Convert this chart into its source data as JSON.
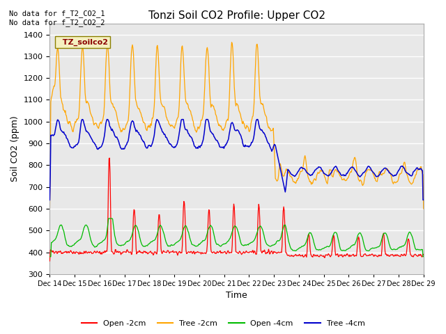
{
  "title": "Tonzi Soil CO2 Profile: Upper CO2",
  "ylabel": "Soil CO2 (ppm)",
  "xlabel": "Time",
  "top_left_text": "No data for f_T2_CO2_1\nNo data for f_T2_CO2_2",
  "legend_label": "TZ_soilco2",
  "legend_entries": [
    "Open -2cm",
    "Tree -2cm",
    "Open -4cm",
    "Tree -4cm"
  ],
  "legend_colors": [
    "#ff0000",
    "#ffa500",
    "#00bb00",
    "#0000cc"
  ],
  "ylim": [
    300,
    1450
  ],
  "plot_bg_color": "#e8e8e8",
  "fig_bg_color": "#ffffff",
  "grid_color": "#ffffff",
  "x_tick_labels": [
    "Dec 14",
    "Dec 15",
    "Dec 16",
    "Dec 17",
    "Dec 18",
    "Dec 19",
    "Dec 20",
    "Dec 21",
    "Dec 22",
    "Dec 23",
    "Dec 24",
    "Dec 25",
    "Dec 26",
    "Dec 27",
    "Dec 28",
    "Dec 29"
  ]
}
